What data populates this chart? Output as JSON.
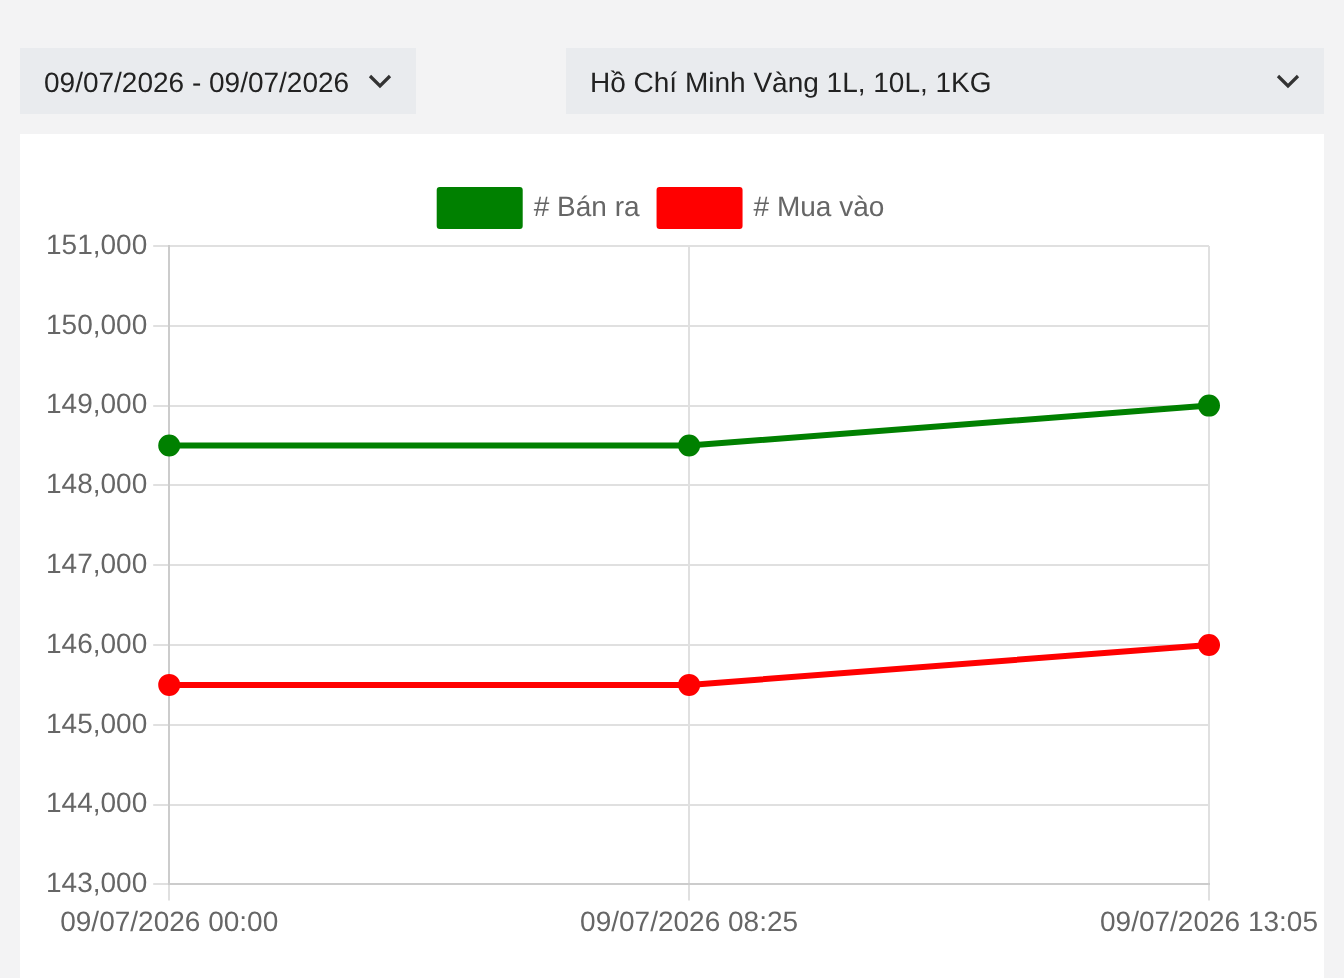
{
  "chart_data": {
    "type": "line",
    "annotations": [
      "09/07/2026 - 09/07/2026",
      "Hồ Chí Minh Vàng 1L, 10L, 1KG"
    ],
    "categories": [
      "09/07/2026 00:00",
      "09/07/2026 08:25",
      "09/07/2026 13:05"
    ],
    "series": [
      {
        "name": "# Bán ra",
        "color": "#008000",
        "values": [
          148500,
          148500,
          149000
        ]
      },
      {
        "name": "# Mua vào",
        "color": "#ff0000",
        "values": [
          145500,
          145500,
          146000
        ]
      }
    ],
    "ylim": [
      143000,
      151000
    ],
    "yticks": [
      {
        "value": 143000,
        "label": "143,000"
      },
      {
        "value": 144000,
        "label": "144,000"
      },
      {
        "value": 145000,
        "label": "145,000"
      },
      {
        "value": 146000,
        "label": "146,000"
      },
      {
        "value": 147000,
        "label": "147,000"
      },
      {
        "value": 148000,
        "label": "148,000"
      },
      {
        "value": 149000,
        "label": "149,000"
      },
      {
        "value": 150000,
        "label": "150,000"
      },
      {
        "value": 151000,
        "label": "151,000"
      }
    ],
    "grid": true,
    "legend": "top",
    "marker": "circle",
    "line_style": "solid"
  }
}
